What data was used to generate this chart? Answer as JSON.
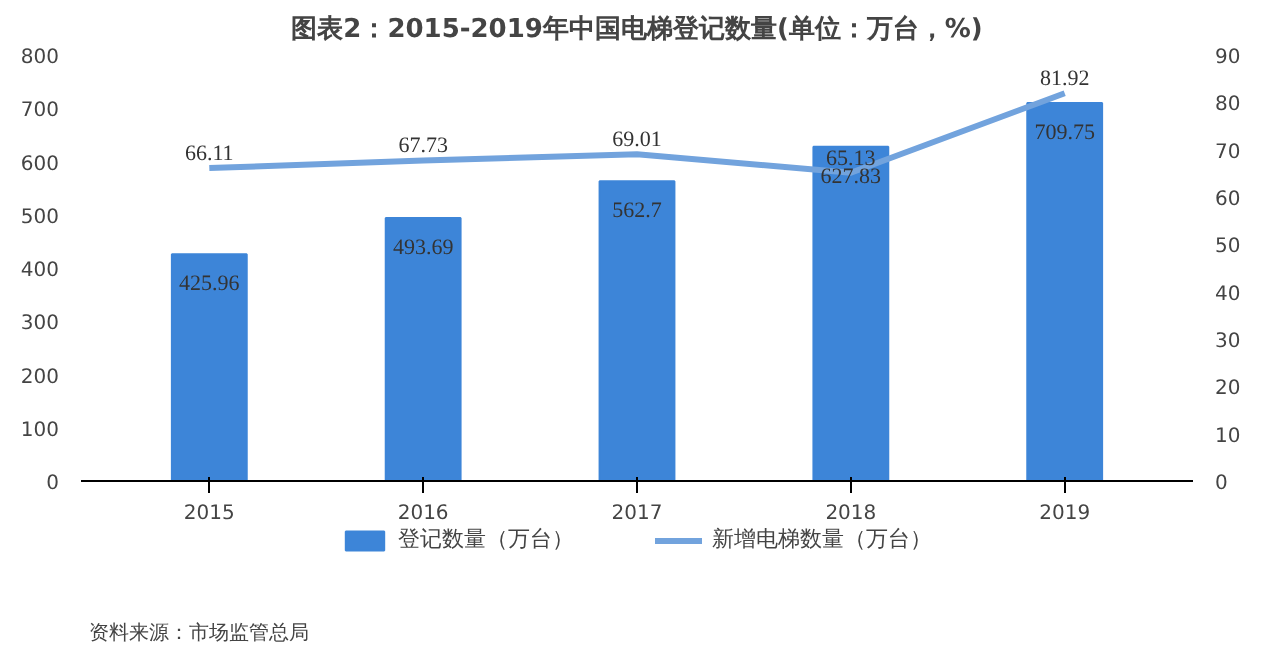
{
  "chart_data": {
    "type": "bar",
    "title": "图表2：2015-2019年中国电梯登记数量(单位：万台，%)",
    "categories": [
      "2015",
      "2016",
      "2017",
      "2018",
      "2019"
    ],
    "series": [
      {
        "name": "登记数量（万台）",
        "color": "#3d85d8",
        "values": [
          425.96,
          493.69,
          562.7,
          627.83,
          709.75
        ]
      },
      {
        "name": "新增电梯数量（万台）",
        "type": "line",
        "axis": "y2",
        "color": "#72a3dd",
        "values": [
          66.11,
          67.73,
          69.01,
          65.13,
          81.92
        ]
      }
    ],
    "ylim": [
      0,
      800
    ],
    "yticks": [
      0,
      100,
      200,
      300,
      400,
      500,
      600,
      700,
      800
    ],
    "y2lim": [
      0,
      90
    ],
    "y2ticks": [
      0,
      10,
      20,
      30,
      40,
      50,
      60,
      70,
      80,
      90
    ],
    "data_labels": true,
    "legend": "bottom",
    "grid": false,
    "marker": "none",
    "line_style": "solid",
    "annotations": [
      "资料来源：市场监管总局"
    ]
  }
}
